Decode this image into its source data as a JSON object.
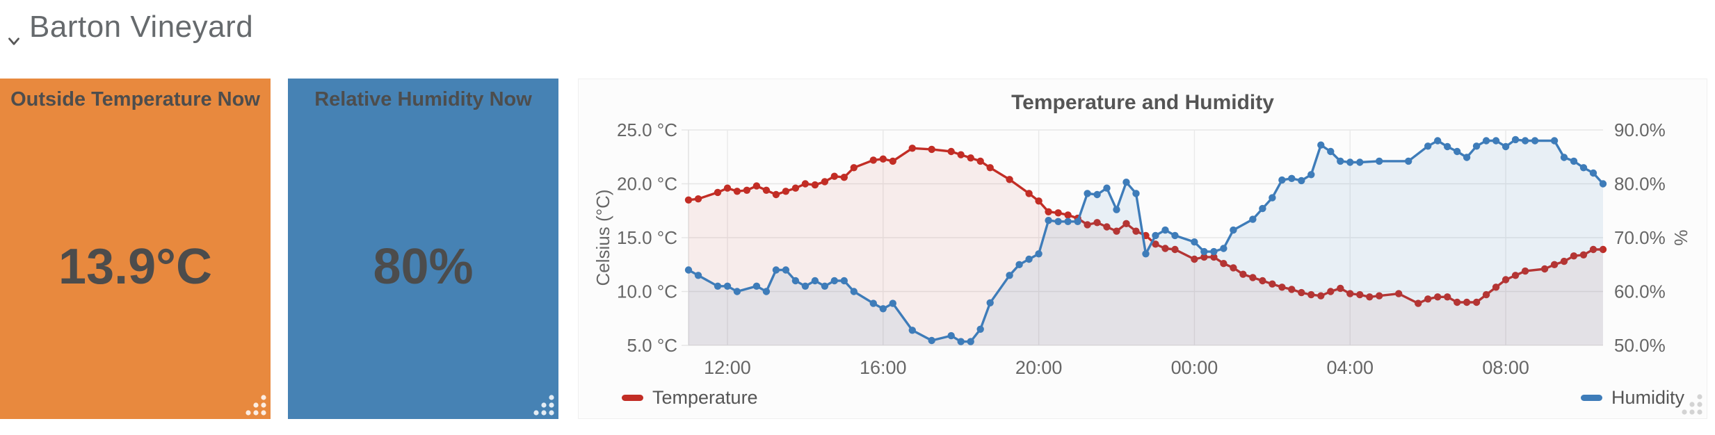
{
  "page": {
    "title": "Barton Vineyard"
  },
  "tiles": [
    {
      "title": "Outside Temperature Now",
      "value": "13.9°C",
      "color": "#E8893E"
    },
    {
      "title": "Relative Humidity Now",
      "value": "80%",
      "color": "#4682B4"
    }
  ],
  "chart_data": {
    "type": "line",
    "title": "Temperature and Humidity",
    "grid": true,
    "legend_position": "bottom",
    "x_axis": {
      "tick_labels": [
        "12:00",
        "16:00",
        "20:00",
        "00:00",
        "04:00",
        "08:00"
      ],
      "tick_hours": [
        1,
        5,
        9,
        13,
        17,
        21
      ],
      "range_hours": [
        0,
        23.5
      ]
    },
    "left_axis": {
      "label": "Celsius (°C)",
      "range": [
        5,
        25
      ],
      "tick_values": [
        25,
        20,
        15,
        10,
        5
      ],
      "tick_labels": [
        "25.0 °C",
        "20.0 °C",
        "15.0 °C",
        "10.0 °C",
        "5.0 °C"
      ]
    },
    "right_axis": {
      "label": "%",
      "range": [
        50,
        90
      ],
      "tick_values": [
        90,
        80,
        70,
        60,
        50
      ],
      "tick_labels": [
        "90.0%",
        "80.0%",
        "70.0%",
        "60.0%",
        "50.0%"
      ]
    },
    "series": [
      {
        "name": "Temperature",
        "axis": "left",
        "color": "#C22D25",
        "fill": "rgba(194,45,37,0.08)",
        "points": [
          [
            0,
            18.5
          ],
          [
            0.25,
            18.6
          ],
          [
            0.75,
            19.2
          ],
          [
            1,
            19.6
          ],
          [
            1.25,
            19.3
          ],
          [
            1.5,
            19.4
          ],
          [
            1.75,
            19.8
          ],
          [
            2,
            19.4
          ],
          [
            2.25,
            19
          ],
          [
            2.5,
            19.3
          ],
          [
            2.75,
            19.6
          ],
          [
            3,
            20
          ],
          [
            3.25,
            19.9
          ],
          [
            3.5,
            20.2
          ],
          [
            3.75,
            20.7
          ],
          [
            4,
            20.6
          ],
          [
            4.25,
            21.5
          ],
          [
            4.75,
            22.2
          ],
          [
            5,
            22.3
          ],
          [
            5.25,
            22.1
          ],
          [
            5.75,
            23.3
          ],
          [
            6.25,
            23.2
          ],
          [
            6.75,
            23
          ],
          [
            7,
            22.7
          ],
          [
            7.25,
            22.4
          ],
          [
            7.5,
            22.1
          ],
          [
            7.75,
            21.5
          ],
          [
            8.25,
            20.4
          ],
          [
            8.75,
            19.1
          ],
          [
            9,
            18.4
          ],
          [
            9.25,
            17.4
          ],
          [
            9.5,
            17.3
          ],
          [
            9.75,
            17.1
          ],
          [
            10,
            16.8
          ],
          [
            10.25,
            16.2
          ],
          [
            10.5,
            16.4
          ],
          [
            10.75,
            16
          ],
          [
            11,
            15.6
          ],
          [
            11.25,
            16.3
          ],
          [
            11.5,
            15.6
          ],
          [
            11.75,
            15.2
          ],
          [
            12,
            14.4
          ],
          [
            12.25,
            14
          ],
          [
            12.5,
            13.9
          ],
          [
            13,
            13
          ],
          [
            13.25,
            13.2
          ],
          [
            13.5,
            13.2
          ],
          [
            13.75,
            12.6
          ],
          [
            14,
            12.2
          ],
          [
            14.25,
            11.6
          ],
          [
            14.5,
            11.3
          ],
          [
            14.75,
            11
          ],
          [
            15,
            10.7
          ],
          [
            15.25,
            10.4
          ],
          [
            15.5,
            10.2
          ],
          [
            15.75,
            9.9
          ],
          [
            16,
            9.7
          ],
          [
            16.25,
            9.6
          ],
          [
            16.5,
            10
          ],
          [
            16.75,
            10.3
          ],
          [
            17,
            9.8
          ],
          [
            17.25,
            9.7
          ],
          [
            17.5,
            9.5
          ],
          [
            17.75,
            9.6
          ],
          [
            18.25,
            9.8
          ],
          [
            18.75,
            8.9
          ],
          [
            19,
            9.3
          ],
          [
            19.25,
            9.5
          ],
          [
            19.5,
            9.5
          ],
          [
            19.75,
            9
          ],
          [
            20,
            9
          ],
          [
            20.25,
            9
          ],
          [
            20.5,
            9.7
          ],
          [
            20.75,
            10.4
          ],
          [
            21,
            11.1
          ],
          [
            21.25,
            11.5
          ],
          [
            21.5,
            11.9
          ],
          [
            22,
            12.1
          ],
          [
            22.25,
            12.5
          ],
          [
            22.5,
            12.8
          ],
          [
            22.75,
            13.3
          ],
          [
            23,
            13.4
          ],
          [
            23.25,
            13.9
          ],
          [
            23.5,
            13.9
          ]
        ]
      },
      {
        "name": "Humidity",
        "axis": "right",
        "color": "#3E7CB9",
        "fill": "rgba(62,124,185,0.10)",
        "points": [
          [
            0,
            64
          ],
          [
            0.25,
            63
          ],
          [
            0.75,
            61
          ],
          [
            1,
            61
          ],
          [
            1.25,
            60
          ],
          [
            1.75,
            61
          ],
          [
            2,
            60
          ],
          [
            2.25,
            64
          ],
          [
            2.5,
            64
          ],
          [
            2.75,
            62
          ],
          [
            3,
            61
          ],
          [
            3.25,
            62
          ],
          [
            3.5,
            61
          ],
          [
            3.75,
            62
          ],
          [
            4,
            62
          ],
          [
            4.25,
            60
          ],
          [
            4.75,
            57.8
          ],
          [
            5,
            56.8
          ],
          [
            5.25,
            57.8
          ],
          [
            5.75,
            52.8
          ],
          [
            6.25,
            50.9
          ],
          [
            6.75,
            51.8
          ],
          [
            7,
            50.7
          ],
          [
            7.25,
            50.7
          ],
          [
            7.5,
            53
          ],
          [
            7.75,
            57.9
          ],
          [
            8.25,
            63
          ],
          [
            8.5,
            65
          ],
          [
            8.75,
            66
          ],
          [
            9,
            67
          ],
          [
            9.25,
            73.2
          ],
          [
            9.5,
            73
          ],
          [
            9.75,
            73
          ],
          [
            10,
            73
          ],
          [
            10.25,
            78.2
          ],
          [
            10.5,
            78
          ],
          [
            10.75,
            79.2
          ],
          [
            11,
            75.2
          ],
          [
            11.25,
            80.3
          ],
          [
            11.5,
            78.2
          ],
          [
            11.75,
            67
          ],
          [
            12,
            70.4
          ],
          [
            12.25,
            71.4
          ],
          [
            12.5,
            70.4
          ],
          [
            13,
            69.2
          ],
          [
            13.25,
            67.4
          ],
          [
            13.5,
            67.4
          ],
          [
            13.75,
            68
          ],
          [
            14,
            71.4
          ],
          [
            14.5,
            73.4
          ],
          [
            14.75,
            75.4
          ],
          [
            15,
            77.4
          ],
          [
            15.25,
            80.7
          ],
          [
            15.5,
            81
          ],
          [
            15.75,
            80.6
          ],
          [
            16,
            81.7
          ],
          [
            16.25,
            87.2
          ],
          [
            16.5,
            86
          ],
          [
            16.75,
            84.2
          ],
          [
            17,
            84
          ],
          [
            17.25,
            84
          ],
          [
            17.75,
            84.2
          ],
          [
            18.5,
            84.2
          ],
          [
            19,
            87
          ],
          [
            19.25,
            88
          ],
          [
            19.5,
            86.9
          ],
          [
            19.75,
            86
          ],
          [
            20,
            84.9
          ],
          [
            20.25,
            87
          ],
          [
            20.5,
            88
          ],
          [
            20.75,
            88
          ],
          [
            21,
            86.9
          ],
          [
            21.25,
            88.2
          ],
          [
            21.5,
            88
          ],
          [
            21.75,
            88
          ],
          [
            22.25,
            88
          ],
          [
            22.5,
            84.9
          ],
          [
            22.75,
            84.2
          ],
          [
            23,
            83
          ],
          [
            23.25,
            82
          ],
          [
            23.5,
            80
          ]
        ]
      }
    ]
  }
}
